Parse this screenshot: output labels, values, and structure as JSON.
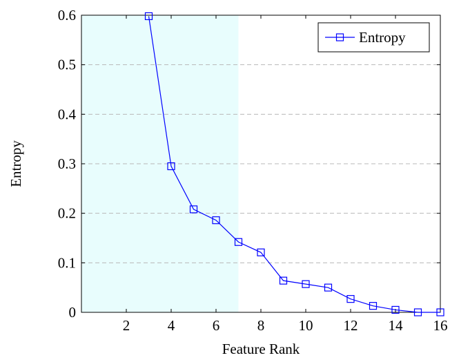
{
  "chart_data": {
    "type": "line",
    "xlabel": "Feature Rank",
    "ylabel": "Entropy",
    "xlim": [
      0,
      16
    ],
    "ylim": [
      0,
      0.6
    ],
    "x_ticks": [
      2,
      4,
      6,
      8,
      10,
      12,
      14,
      16
    ],
    "y_ticks": [
      0,
      0.1,
      0.2,
      0.3,
      0.4,
      0.5,
      0.6
    ],
    "x_tick_labels": [
      "2",
      "4",
      "6",
      "8",
      "10",
      "12",
      "14",
      "16"
    ],
    "y_tick_labels": [
      "0",
      "0.1",
      "0.2",
      "0.3",
      "0.4",
      "0.5",
      "0.6"
    ],
    "grid": "horizontal dashed",
    "highlight_region": {
      "x_range": [
        0,
        7
      ],
      "color": "#e8fdfd"
    },
    "legend_position": "top-right",
    "series": [
      {
        "name": "Entropy",
        "color": "#0000ff",
        "marker": "square",
        "x": [
          3,
          4,
          5,
          6,
          7,
          8,
          9,
          10,
          11,
          12,
          13,
          14,
          15,
          16
        ],
        "y": [
          0.598,
          0.295,
          0.208,
          0.186,
          0.142,
          0.121,
          0.064,
          0.057,
          0.05,
          0.027,
          0.013,
          0.005,
          0.0,
          0.0
        ]
      }
    ]
  }
}
